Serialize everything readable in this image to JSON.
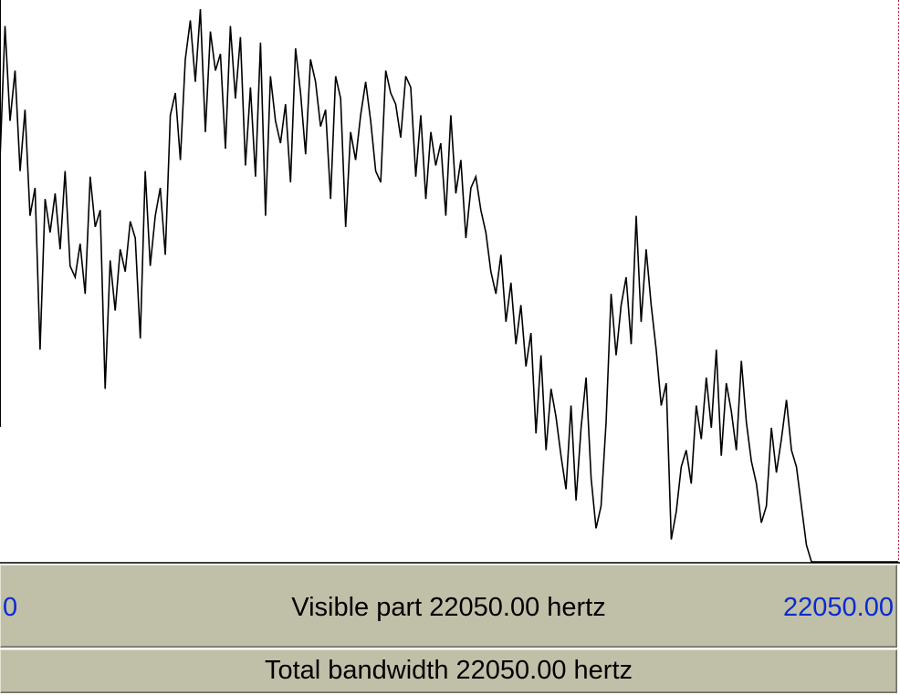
{
  "spectrum": {
    "freq_range_hz": [
      0,
      22050
    ],
    "line_color": "#000000",
    "levels": [
      0.72,
      0.96,
      0.79,
      0.88,
      0.7,
      0.81,
      0.62,
      0.67,
      0.38,
      0.65,
      0.59,
      0.66,
      0.56,
      0.7,
      0.53,
      0.51,
      0.57,
      0.48,
      0.69,
      0.6,
      0.63,
      0.31,
      0.54,
      0.45,
      0.56,
      0.52,
      0.61,
      0.58,
      0.4,
      0.7,
      0.53,
      0.62,
      0.67,
      0.55,
      0.8,
      0.84,
      0.72,
      0.9,
      0.97,
      0.86,
      0.99,
      0.77,
      0.95,
      0.88,
      0.91,
      0.74,
      0.96,
      0.83,
      0.94,
      0.71,
      0.85,
      0.69,
      0.93,
      0.62,
      0.87,
      0.79,
      0.75,
      0.82,
      0.68,
      0.92,
      0.84,
      0.73,
      0.9,
      0.86,
      0.78,
      0.81,
      0.65,
      0.87,
      0.83,
      0.6,
      0.77,
      0.72,
      0.8,
      0.86,
      0.79,
      0.7,
      0.68,
      0.88,
      0.84,
      0.82,
      0.76,
      0.87,
      0.85,
      0.69,
      0.8,
      0.65,
      0.77,
      0.71,
      0.75,
      0.62,
      0.8,
      0.66,
      0.72,
      0.58,
      0.67,
      0.69,
      0.63,
      0.59,
      0.52,
      0.48,
      0.55,
      0.43,
      0.5,
      0.39,
      0.46,
      0.35,
      0.41,
      0.23,
      0.37,
      0.2,
      0.31,
      0.26,
      0.19,
      0.13,
      0.28,
      0.11,
      0.24,
      0.33,
      0.15,
      0.06,
      0.1,
      0.25,
      0.48,
      0.37,
      0.46,
      0.51,
      0.39,
      0.62,
      0.43,
      0.56,
      0.46,
      0.38,
      0.28,
      0.32,
      0.04,
      0.09,
      0.17,
      0.2,
      0.14,
      0.28,
      0.22,
      0.33,
      0.24,
      0.38,
      0.19,
      0.32,
      0.27,
      0.2,
      0.36,
      0.25,
      0.18,
      0.14,
      0.07,
      0.1,
      0.24,
      0.16,
      0.22,
      0.29,
      0.2,
      0.17,
      0.1,
      0.03,
      0.0,
      0.0,
      0.0
    ]
  },
  "range_bar": {
    "left_value": "0",
    "center_label": "Visible part 22050.00 hertz",
    "right_value": "22050.00"
  },
  "total_bar": {
    "label": "Total bandwidth 22050.00 hertz"
  },
  "colors": {
    "bar_bg": "#c0bfa8",
    "range_value": "#0a2bd0",
    "right_edge_marker": "#c8102e"
  }
}
